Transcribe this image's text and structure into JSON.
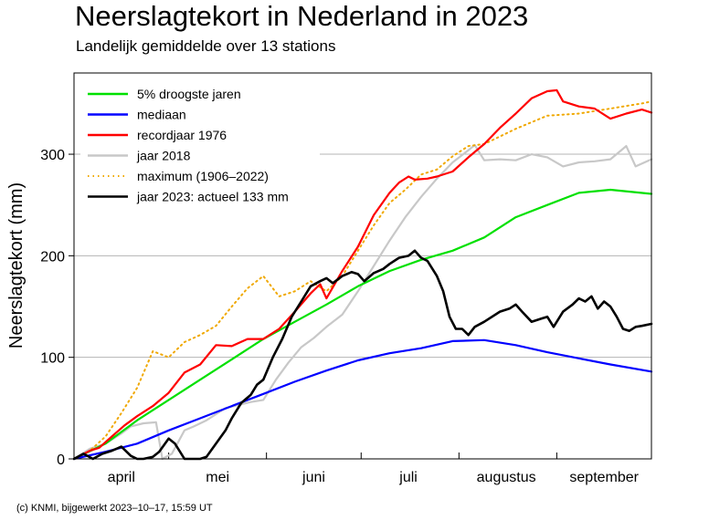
{
  "chart_data": {
    "type": "line",
    "title": "Neerslagtekort in Nederland in 2023",
    "subtitle": "Landelijk gemiddelde over 13 stations",
    "ylabel": "Neerslagtekort (mm)",
    "xlabel": "",
    "xlim": [
      0,
      183
    ],
    "ylim": [
      0,
      380
    ],
    "x_unit": "dagen sinds 1 april",
    "yticks": [
      0,
      100,
      200,
      300
    ],
    "xtick_labels": [
      {
        "label": "april",
        "x": 15
      },
      {
        "label": "mei",
        "x": 45.5
      },
      {
        "label": "juni",
        "x": 76
      },
      {
        "label": "juli",
        "x": 106
      },
      {
        "label": "augustus",
        "x": 137
      },
      {
        "label": "september",
        "x": 168
      }
    ],
    "month_boundaries": [
      30,
      61,
      91,
      122,
      153
    ],
    "grid": true,
    "legend_position": "top-left",
    "series": [
      {
        "name": "5% droogste jaren",
        "color": "#00e000",
        "style": "solid",
        "points": [
          [
            0,
            0
          ],
          [
            10,
            15
          ],
          [
            20,
            38
          ],
          [
            30,
            58
          ],
          [
            40,
            78
          ],
          [
            50,
            98
          ],
          [
            60,
            118
          ],
          [
            70,
            135
          ],
          [
            80,
            152
          ],
          [
            90,
            170
          ],
          [
            100,
            185
          ],
          [
            110,
            196
          ],
          [
            120,
            205
          ],
          [
            130,
            218
          ],
          [
            140,
            238
          ],
          [
            150,
            250
          ],
          [
            160,
            262
          ],
          [
            170,
            265
          ],
          [
            183,
            261
          ]
        ]
      },
      {
        "name": "mediaan",
        "color": "#0000ff",
        "style": "solid",
        "points": [
          [
            0,
            0
          ],
          [
            10,
            7
          ],
          [
            20,
            15
          ],
          [
            30,
            28
          ],
          [
            40,
            40
          ],
          [
            50,
            52
          ],
          [
            60,
            64
          ],
          [
            70,
            76
          ],
          [
            80,
            87
          ],
          [
            90,
            97
          ],
          [
            100,
            104
          ],
          [
            110,
            109
          ],
          [
            120,
            116
          ],
          [
            130,
            117
          ],
          [
            140,
            112
          ],
          [
            150,
            105
          ],
          [
            160,
            99
          ],
          [
            170,
            93
          ],
          [
            183,
            86
          ]
        ]
      },
      {
        "name": "recordjaar 1976",
        "color": "#ff0000",
        "style": "solid",
        "points": [
          [
            0,
            0
          ],
          [
            5,
            8
          ],
          [
            8,
            11
          ],
          [
            12,
            22
          ],
          [
            16,
            33
          ],
          [
            20,
            42
          ],
          [
            25,
            52
          ],
          [
            30,
            65
          ],
          [
            35,
            85
          ],
          [
            40,
            93
          ],
          [
            45,
            112
          ],
          [
            50,
            111
          ],
          [
            55,
            118
          ],
          [
            60,
            118
          ],
          [
            65,
            128
          ],
          [
            70,
            145
          ],
          [
            75,
            163
          ],
          [
            78,
            172
          ],
          [
            80,
            158
          ],
          [
            85,
            185
          ],
          [
            90,
            209
          ],
          [
            95,
            240
          ],
          [
            100,
            262
          ],
          [
            103,
            272
          ],
          [
            106,
            278
          ],
          [
            108,
            275
          ],
          [
            112,
            276
          ],
          [
            115,
            278
          ],
          [
            120,
            283
          ],
          [
            125,
            297
          ],
          [
            130,
            310
          ],
          [
            135,
            326
          ],
          [
            140,
            340
          ],
          [
            145,
            355
          ],
          [
            150,
            362
          ],
          [
            153,
            363
          ],
          [
            155,
            352
          ],
          [
            160,
            347
          ],
          [
            165,
            345
          ],
          [
            170,
            335
          ],
          [
            175,
            340
          ],
          [
            180,
            344
          ],
          [
            183,
            341
          ]
        ]
      },
      {
        "name": "jaar 2018",
        "color": "#c8c8c8",
        "style": "solid",
        "points": [
          [
            0,
            0
          ],
          [
            5,
            10
          ],
          [
            10,
            15
          ],
          [
            15,
            25
          ],
          [
            18,
            32
          ],
          [
            22,
            35
          ],
          [
            26,
            36
          ],
          [
            28,
            0
          ],
          [
            31,
            5
          ],
          [
            35,
            28
          ],
          [
            38,
            32
          ],
          [
            42,
            38
          ],
          [
            48,
            50
          ],
          [
            52,
            53
          ],
          [
            56,
            56
          ],
          [
            60,
            58
          ],
          [
            64,
            78
          ],
          [
            68,
            95
          ],
          [
            72,
            110
          ],
          [
            76,
            119
          ],
          [
            80,
            130
          ],
          [
            85,
            142
          ],
          [
            90,
            165
          ],
          [
            95,
            190
          ],
          [
            100,
            215
          ],
          [
            105,
            238
          ],
          [
            110,
            258
          ],
          [
            115,
            276
          ],
          [
            120,
            292
          ],
          [
            125,
            304
          ],
          [
            127,
            309
          ],
          [
            130,
            294
          ],
          [
            135,
            295
          ],
          [
            140,
            294
          ],
          [
            145,
            300
          ],
          [
            150,
            297
          ],
          [
            155,
            288
          ],
          [
            160,
            292
          ],
          [
            165,
            293
          ],
          [
            170,
            295
          ],
          [
            175,
            308
          ],
          [
            178,
            288
          ],
          [
            183,
            295
          ]
        ]
      },
      {
        "name": "maximum (1906–2022)",
        "color": "#f0a800",
        "style": "dotted",
        "points": [
          [
            0,
            0
          ],
          [
            5,
            8
          ],
          [
            10,
            22
          ],
          [
            15,
            45
          ],
          [
            20,
            70
          ],
          [
            25,
            106
          ],
          [
            30,
            100
          ],
          [
            35,
            115
          ],
          [
            40,
            122
          ],
          [
            45,
            131
          ],
          [
            50,
            150
          ],
          [
            55,
            168
          ],
          [
            60,
            180
          ],
          [
            65,
            160
          ],
          [
            70,
            165
          ],
          [
            75,
            175
          ],
          [
            80,
            165
          ],
          [
            85,
            180
          ],
          [
            90,
            205
          ],
          [
            95,
            230
          ],
          [
            100,
            252
          ],
          [
            105,
            265
          ],
          [
            110,
            280
          ],
          [
            115,
            285
          ],
          [
            120,
            298
          ],
          [
            125,
            308
          ],
          [
            130,
            310
          ],
          [
            140,
            325
          ],
          [
            150,
            338
          ],
          [
            160,
            340
          ],
          [
            170,
            345
          ],
          [
            180,
            350
          ],
          [
            183,
            352
          ]
        ]
      },
      {
        "name": "jaar 2023: actueel 133 mm",
        "color": "#000000",
        "style": "solid",
        "points": [
          [
            0,
            0
          ],
          [
            3,
            5
          ],
          [
            6,
            0
          ],
          [
            9,
            5
          ],
          [
            12,
            8
          ],
          [
            15,
            12
          ],
          [
            18,
            3
          ],
          [
            20,
            0
          ],
          [
            22,
            0
          ],
          [
            25,
            2
          ],
          [
            27,
            7
          ],
          [
            30,
            20
          ],
          [
            32,
            15
          ],
          [
            35,
            0
          ],
          [
            38,
            0
          ],
          [
            40,
            0
          ],
          [
            42,
            2
          ],
          [
            45,
            15
          ],
          [
            48,
            28
          ],
          [
            50,
            40
          ],
          [
            53,
            55
          ],
          [
            56,
            63
          ],
          [
            58,
            73
          ],
          [
            60,
            78
          ],
          [
            63,
            100
          ],
          [
            66,
            118
          ],
          [
            69,
            140
          ],
          [
            72,
            155
          ],
          [
            75,
            170
          ],
          [
            78,
            175
          ],
          [
            80,
            178
          ],
          [
            82,
            173
          ],
          [
            85,
            180
          ],
          [
            88,
            184
          ],
          [
            90,
            182
          ],
          [
            92,
            175
          ],
          [
            95,
            183
          ],
          [
            98,
            187
          ],
          [
            100,
            192
          ],
          [
            103,
            198
          ],
          [
            106,
            200
          ],
          [
            108,
            205
          ],
          [
            110,
            198
          ],
          [
            112,
            195
          ],
          [
            115,
            180
          ],
          [
            117,
            165
          ],
          [
            119,
            140
          ],
          [
            121,
            128
          ],
          [
            123,
            128
          ],
          [
            125,
            122
          ],
          [
            127,
            130
          ],
          [
            130,
            135
          ],
          [
            135,
            145
          ],
          [
            138,
            148
          ],
          [
            140,
            152
          ],
          [
            142,
            145
          ],
          [
            145,
            135
          ],
          [
            148,
            138
          ],
          [
            150,
            140
          ],
          [
            152,
            130
          ],
          [
            155,
            145
          ],
          [
            158,
            152
          ],
          [
            160,
            158
          ],
          [
            162,
            155
          ],
          [
            164,
            160
          ],
          [
            166,
            148
          ],
          [
            168,
            155
          ],
          [
            170,
            150
          ],
          [
            172,
            140
          ],
          [
            174,
            128
          ],
          [
            176,
            126
          ],
          [
            178,
            130
          ],
          [
            180,
            131
          ],
          [
            183,
            133
          ]
        ]
      }
    ]
  },
  "footer": "(c) KNMI, bijgewerkt 2023–10–17, 15:59 UT"
}
